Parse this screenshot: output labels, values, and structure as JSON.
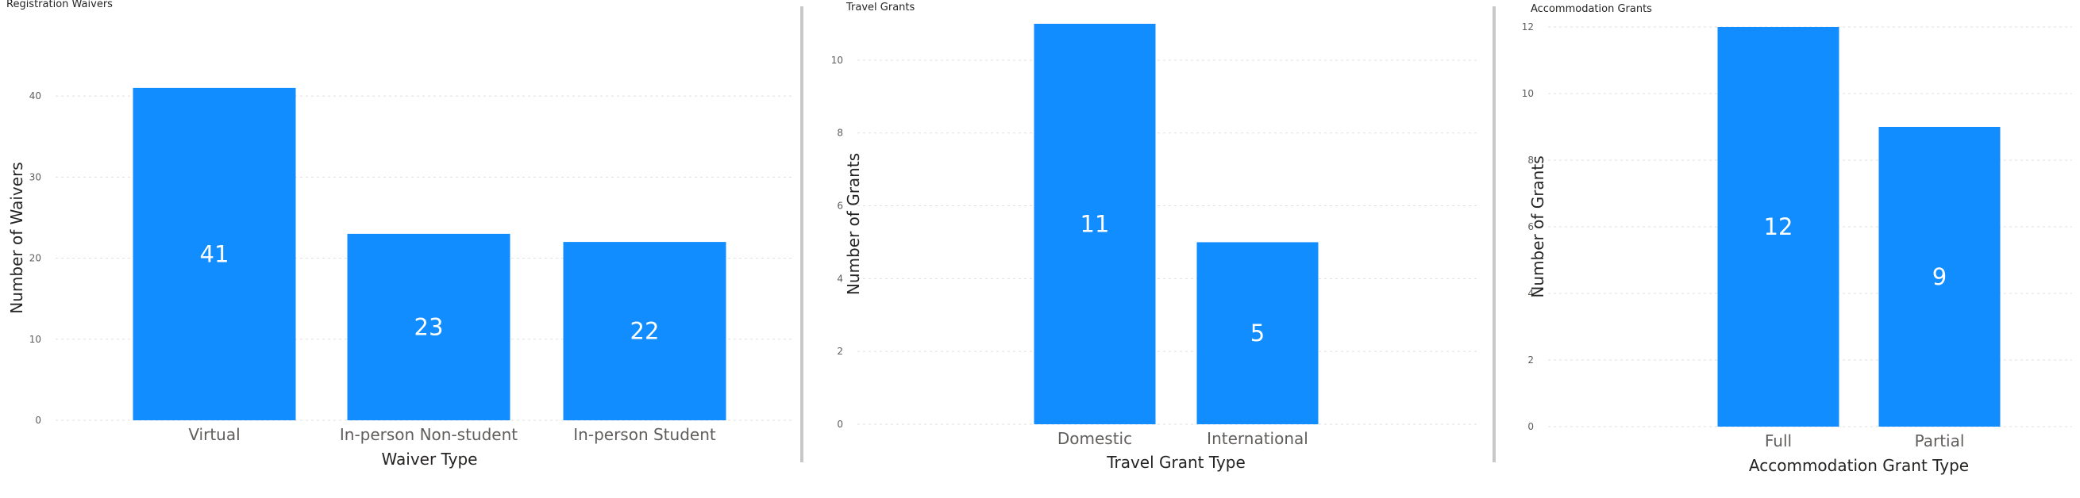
{
  "colors": {
    "bar": "#118DFF",
    "grid": "#e1dfdd",
    "divider": "#c8c8c8"
  },
  "chart_data": [
    {
      "type": "bar",
      "title": "Registration Waivers",
      "xlabel": "Waiver Type",
      "ylabel": "Number of Waivers",
      "categories": [
        "Virtual",
        "In-person Non-student",
        "In-person Student"
      ],
      "values": [
        41,
        23,
        22
      ],
      "yticks": [
        0,
        10,
        20,
        30,
        40
      ],
      "ylim": [
        0,
        45
      ],
      "grid": true
    },
    {
      "type": "bar",
      "title": "Travel Grants",
      "xlabel": "Travel Grant Type",
      "ylabel": "Number of Grants",
      "categories": [
        "Domestic",
        "International"
      ],
      "values": [
        11,
        5
      ],
      "yticks": [
        0,
        2,
        4,
        6,
        8,
        10
      ],
      "ylim": [
        0,
        11
      ],
      "grid": true
    },
    {
      "type": "bar",
      "title": "Accommodation Grants",
      "xlabel": "Accommodation Grant Type",
      "ylabel": "Number of Grants",
      "categories": [
        "Full",
        "Partial"
      ],
      "values": [
        12,
        9
      ],
      "yticks": [
        0,
        2,
        4,
        6,
        8,
        10,
        12
      ],
      "ylim": [
        0,
        12
      ],
      "grid": true
    }
  ]
}
